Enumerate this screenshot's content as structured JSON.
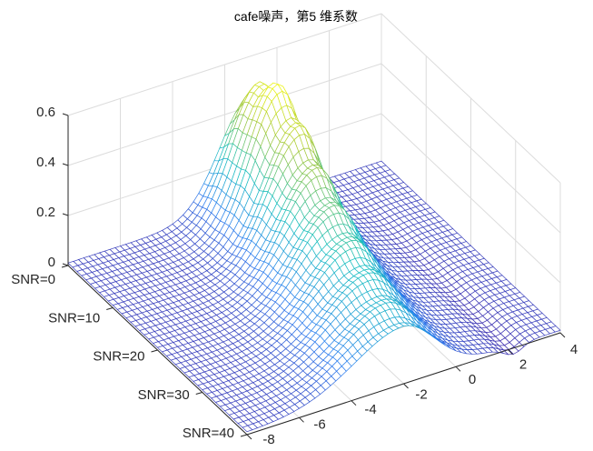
{
  "chart_data": {
    "type": "surface",
    "title": "cafe噪声，第5 维系数",
    "xlabel": "",
    "ylabel": "",
    "zlabel": "",
    "xlim": [
      -8,
      4
    ],
    "ylim": [
      0,
      40
    ],
    "zlim": [
      0,
      0.6
    ],
    "grid": true,
    "x_ticks": [
      "-8",
      "-6",
      "-4",
      "-2",
      "0",
      "2",
      "4"
    ],
    "x_tick_values": [
      -8,
      -6,
      -4,
      -2,
      0,
      2,
      4
    ],
    "y_ticks": [
      "SNR=0",
      "SNR=10",
      "SNR=20",
      "SNR=30",
      "SNR=40"
    ],
    "y_tick_values": [
      0,
      10,
      20,
      30,
      40
    ],
    "z_ticks": [
      "0",
      "0.2",
      "0.4",
      "0.6"
    ],
    "z_tick_values": [
      0,
      0.2,
      0.4,
      0.6
    ],
    "ridge_profile": {
      "snr": [
        0,
        5,
        10,
        15,
        20,
        25,
        30,
        35,
        40
      ],
      "peak_height": [
        0.45,
        0.58,
        0.5,
        0.42,
        0.36,
        0.31,
        0.27,
        0.24,
        0.22
      ],
      "peak_x": [
        -1.0,
        -1.0,
        -1.0,
        -1.2,
        -1.4,
        -1.6,
        -1.8,
        -2.0,
        -2.1
      ],
      "width": [
        1.2,
        1.2,
        1.3,
        1.4,
        1.5,
        1.6,
        1.7,
        1.8,
        1.9
      ]
    },
    "baseline": 0.01,
    "dip": {
      "x": 2.2,
      "depth": -0.035
    },
    "colormap": [
      "#3e26a8",
      "#2c7ef0",
      "#16bfbf",
      "#a5c83a",
      "#f9fb0e"
    ]
  }
}
